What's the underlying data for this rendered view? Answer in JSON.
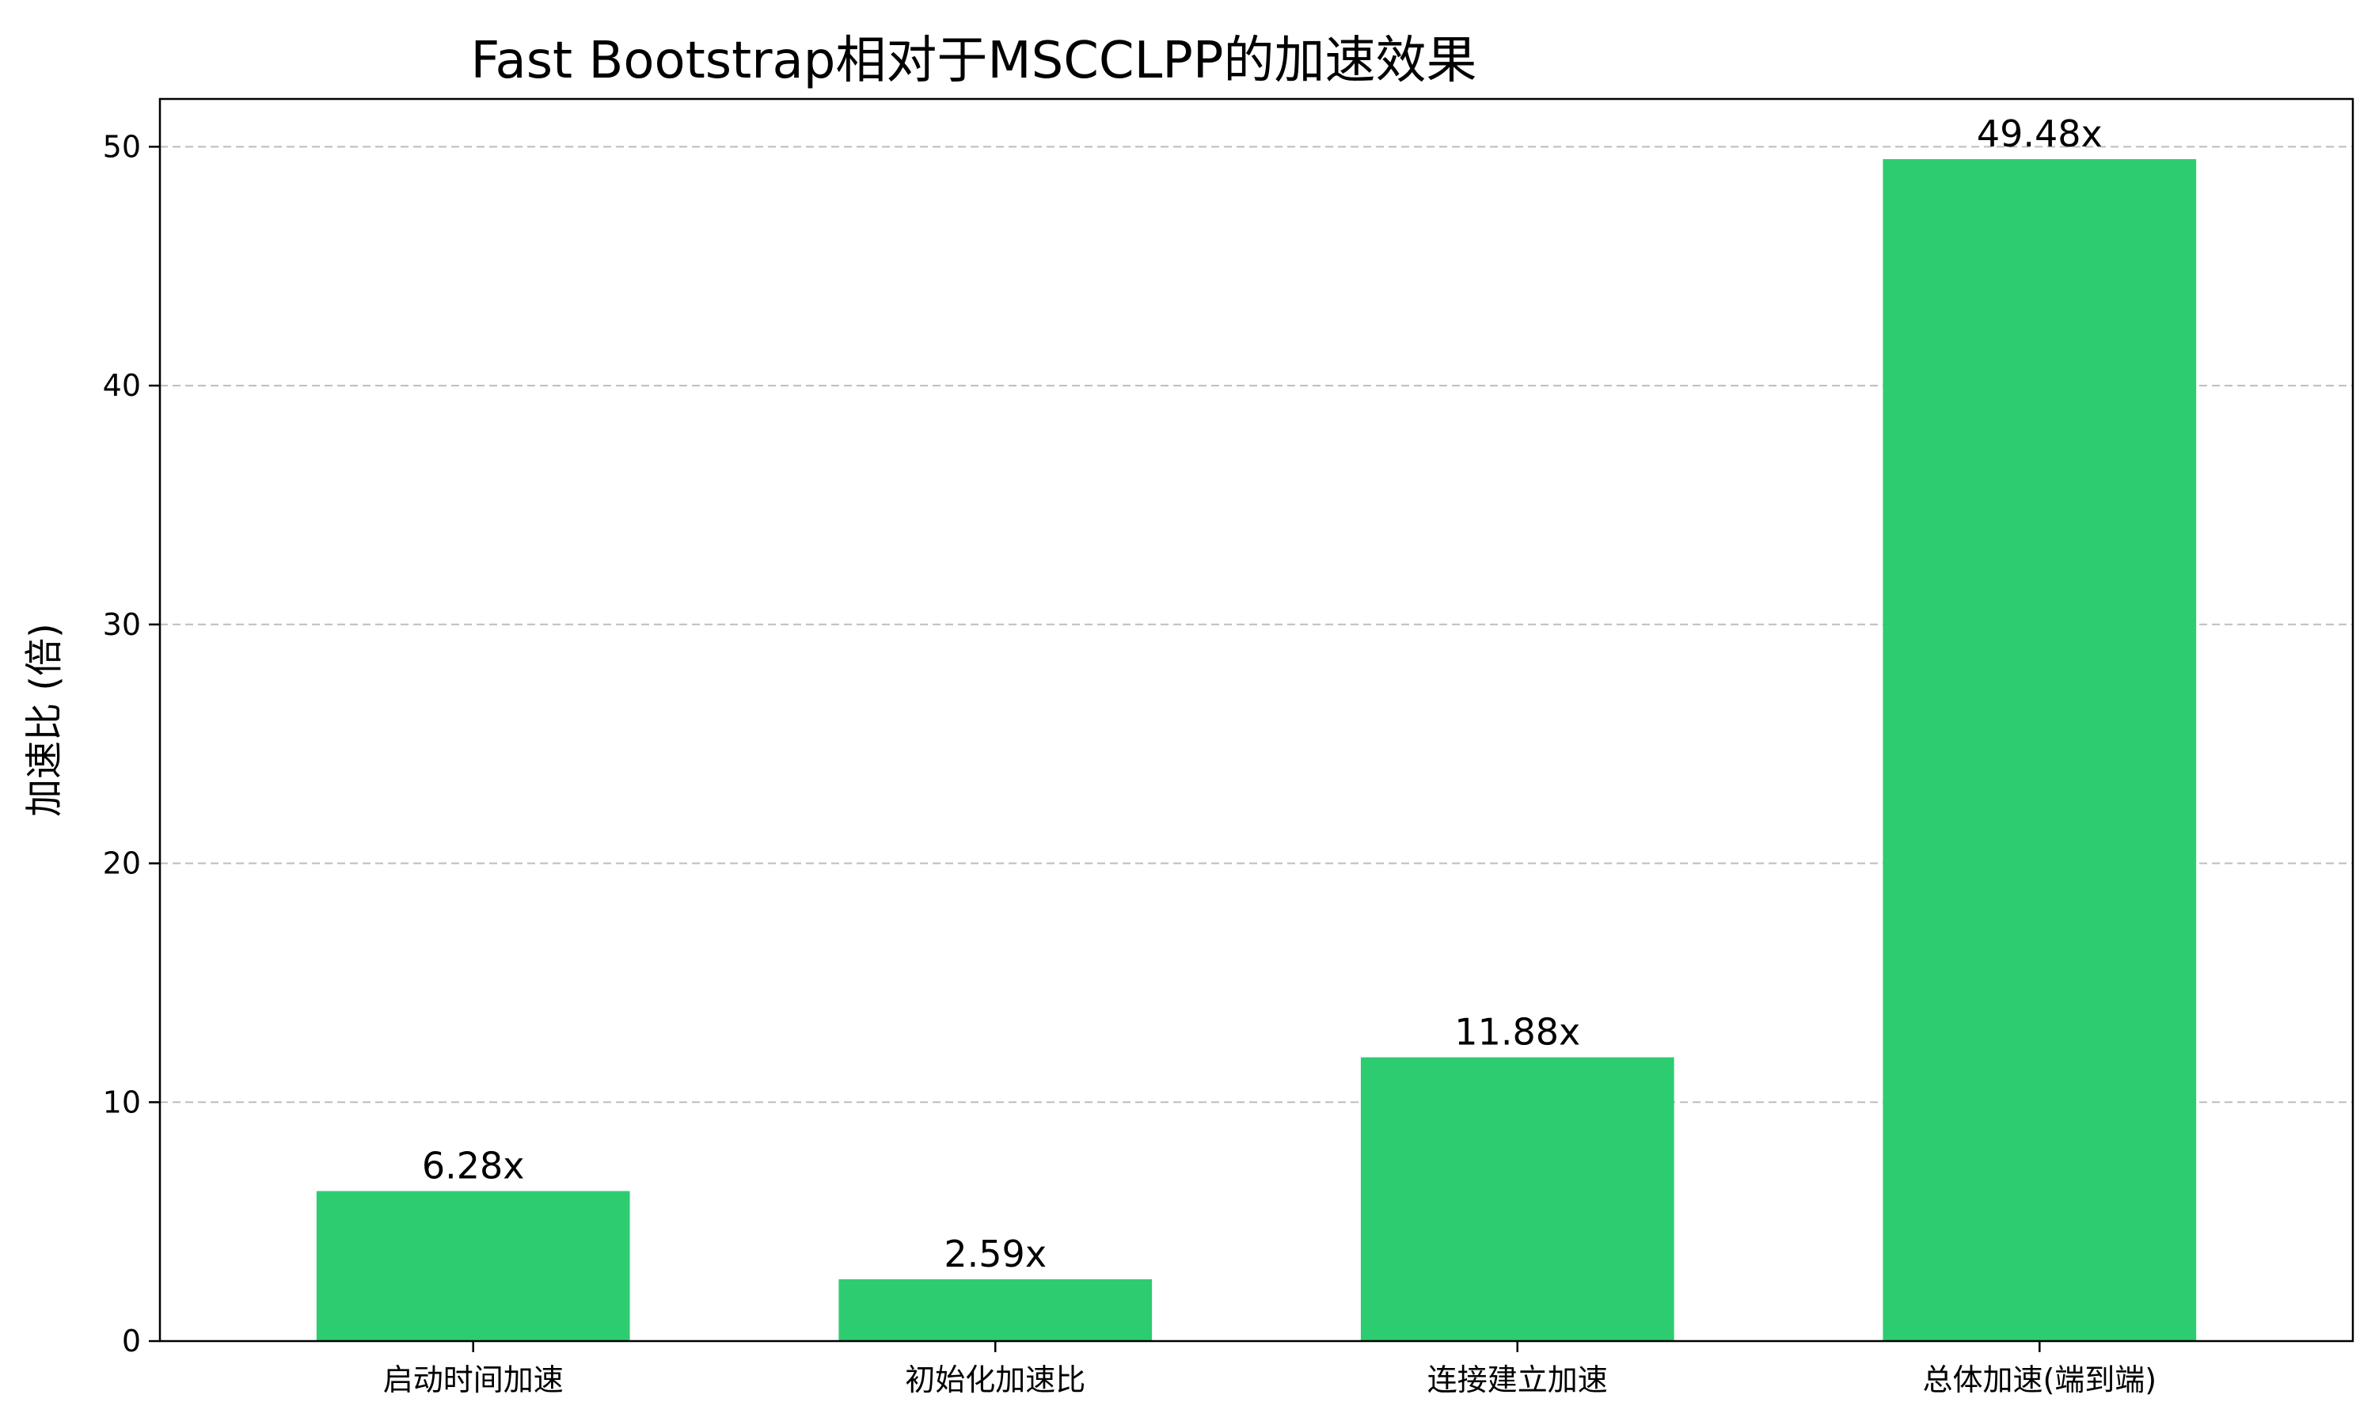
{
  "chart_data": {
    "type": "bar",
    "title": "Fast Bootstrap相对于MSCCLPP的加速效果",
    "ylabel": "加速比 (倍)",
    "xlabel": "",
    "categories": [
      "启动时间加速",
      "初始化加速比",
      "连接建立加速",
      "总体加速(端到端)"
    ],
    "values": [
      6.28,
      2.59,
      11.88,
      49.48
    ],
    "value_labels": [
      "6.28x",
      "2.59x",
      "11.88x",
      "49.48x"
    ],
    "ylim": [
      0,
      52
    ],
    "yticks": [
      0,
      10,
      20,
      30,
      40,
      50
    ],
    "ytick_labels": [
      "0",
      "10",
      "20",
      "30",
      "40",
      "50"
    ],
    "grid": "y-dashed",
    "colors": {
      "bar": "#2ecc71",
      "grid": "#bdbdbd",
      "axis": "#000000"
    }
  }
}
